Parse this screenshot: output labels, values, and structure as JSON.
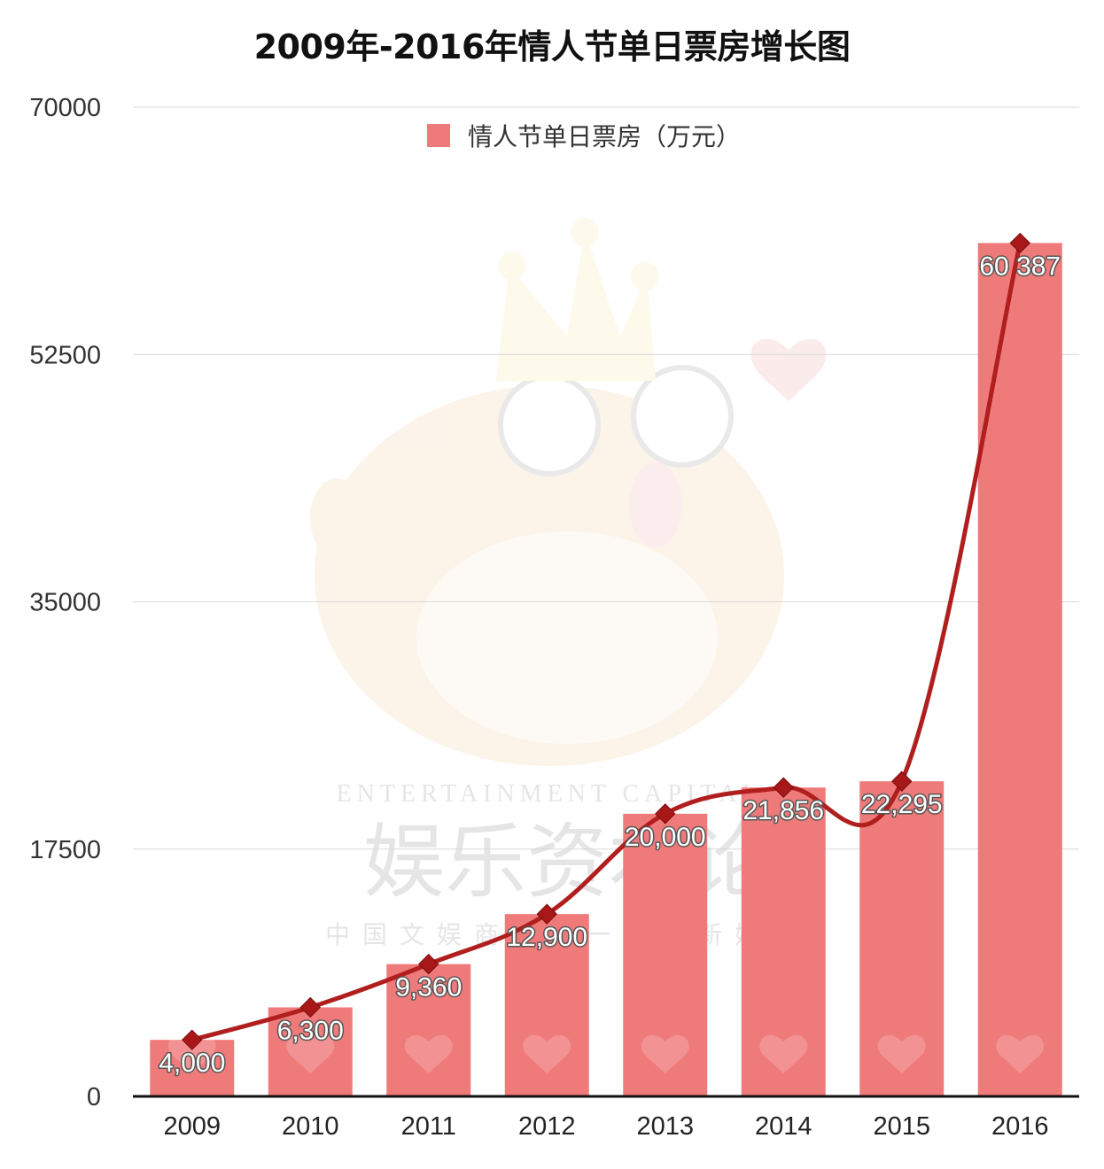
{
  "title": "2009年-2016年情人节单日票房增长图",
  "colors": {
    "bar": "#ef7a7a",
    "line": "#b01e1e",
    "marker": "#a81818",
    "grid": "#d8d8d8",
    "axis": "#111111"
  },
  "chart_data": {
    "type": "bar",
    "title": "2009年-2016年情人节单日票房增长图",
    "categories": [
      "2009",
      "2010",
      "2011",
      "2012",
      "2013",
      "2014",
      "2015",
      "2016"
    ],
    "series": [
      {
        "name": "情人节单日票房（万元）",
        "values": [
          4000,
          6300,
          9360,
          12900,
          20000,
          21856,
          22295,
          60387
        ]
      }
    ],
    "data_labels": [
      "4,000",
      "6,300",
      "9,360",
      "12,900",
      "20,000",
      "21,856",
      "22,295",
      "60 387"
    ],
    "overlay_line": "smoothed line with diamond markers following bar values",
    "ylim": [
      0,
      70000
    ],
    "yticks": [
      0,
      17500,
      35000,
      52500,
      70000
    ],
    "ytick_labels": [
      "0",
      "17500",
      "35000",
      "52500",
      "70000"
    ],
    "xlabel": "",
    "ylabel": "",
    "grid": "horizontal",
    "legend": "top-center"
  },
  "watermark": {
    "text_en": "ENTERTAINMENT CAPITAL",
    "text_cn": "娱乐资本论",
    "slogan": "中国文娱商业第一垂直新媒体"
  }
}
